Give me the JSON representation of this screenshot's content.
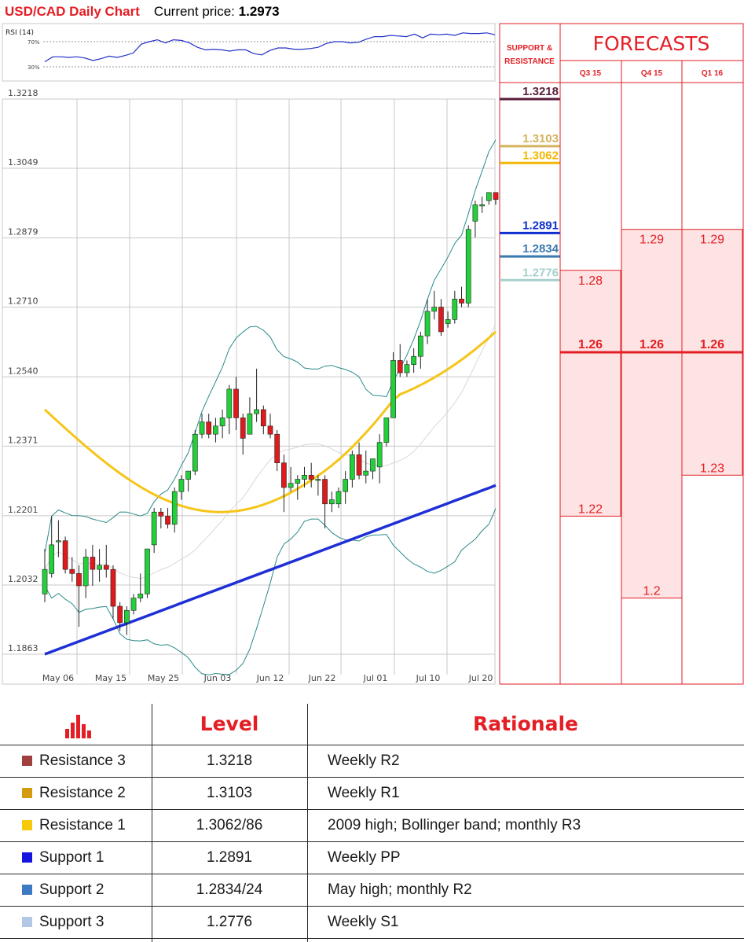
{
  "header": {
    "title": "USD/CAD Daily Chart",
    "price_label": "Current price:",
    "price_value": "1.2973"
  },
  "chart_data": [
    {
      "type": "candlestick",
      "series_name": "USD/CAD",
      "y_ticks": [
        "1.3218",
        "1.3049",
        "1.2879",
        "1.2710",
        "1.2540",
        "1.2371",
        "1.2201",
        "1.2032",
        "1.1863"
      ],
      "x_ticks": [
        "May 06",
        "May 15",
        "May 25",
        "Jun 03",
        "Jun 12",
        "Jun 22",
        "Jul 01",
        "Jul 10",
        "Jul 20"
      ],
      "ylim": [
        1.1863,
        1.3218
      ],
      "grid": true,
      "candles": [
        {
          "o": 1.201,
          "h": 1.212,
          "l": 1.199,
          "c": 1.207
        },
        {
          "o": 1.206,
          "h": 1.22,
          "l": 1.205,
          "c": 1.213
        },
        {
          "o": 1.214,
          "h": 1.219,
          "l": 1.21,
          "c": 1.214
        },
        {
          "o": 1.214,
          "h": 1.215,
          "l": 1.206,
          "c": 1.207
        },
        {
          "o": 1.207,
          "h": 1.21,
          "l": 1.204,
          "c": 1.206
        },
        {
          "o": 1.206,
          "h": 1.208,
          "l": 1.193,
          "c": 1.203
        },
        {
          "o": 1.203,
          "h": 1.212,
          "l": 1.2,
          "c": 1.21
        },
        {
          "o": 1.21,
          "h": 1.213,
          "l": 1.203,
          "c": 1.207
        },
        {
          "o": 1.207,
          "h": 1.212,
          "l": 1.204,
          "c": 1.208
        },
        {
          "o": 1.208,
          "h": 1.213,
          "l": 1.205,
          "c": 1.207
        },
        {
          "o": 1.207,
          "h": 1.208,
          "l": 1.195,
          "c": 1.198
        },
        {
          "o": 1.198,
          "h": 1.199,
          "l": 1.192,
          "c": 1.194
        },
        {
          "o": 1.194,
          "h": 1.198,
          "l": 1.191,
          "c": 1.197
        },
        {
          "o": 1.197,
          "h": 1.201,
          "l": 1.196,
          "c": 1.2
        },
        {
          "o": 1.2,
          "h": 1.206,
          "l": 1.199,
          "c": 1.201
        },
        {
          "o": 1.201,
          "h": 1.212,
          "l": 1.2,
          "c": 1.212
        },
        {
          "o": 1.213,
          "h": 1.222,
          "l": 1.211,
          "c": 1.221
        },
        {
          "o": 1.221,
          "h": 1.222,
          "l": 1.217,
          "c": 1.22
        },
        {
          "o": 1.22,
          "h": 1.222,
          "l": 1.217,
          "c": 1.218
        },
        {
          "o": 1.218,
          "h": 1.227,
          "l": 1.216,
          "c": 1.226
        },
        {
          "o": 1.226,
          "h": 1.23,
          "l": 1.224,
          "c": 1.229
        },
        {
          "o": 1.229,
          "h": 1.231,
          "l": 1.226,
          "c": 1.231
        },
        {
          "o": 1.231,
          "h": 1.241,
          "l": 1.23,
          "c": 1.24
        },
        {
          "o": 1.24,
          "h": 1.245,
          "l": 1.239,
          "c": 1.243
        },
        {
          "o": 1.243,
          "h": 1.245,
          "l": 1.239,
          "c": 1.24
        },
        {
          "o": 1.24,
          "h": 1.244,
          "l": 1.238,
          "c": 1.242
        },
        {
          "o": 1.242,
          "h": 1.246,
          "l": 1.239,
          "c": 1.244
        },
        {
          "o": 1.244,
          "h": 1.252,
          "l": 1.24,
          "c": 1.251
        },
        {
          "o": 1.251,
          "h": 1.254,
          "l": 1.241,
          "c": 1.244
        },
        {
          "o": 1.244,
          "h": 1.245,
          "l": 1.235,
          "c": 1.239
        },
        {
          "o": 1.24,
          "h": 1.249,
          "l": 1.24,
          "c": 1.245
        },
        {
          "o": 1.245,
          "h": 1.256,
          "l": 1.243,
          "c": 1.246
        },
        {
          "o": 1.246,
          "h": 1.247,
          "l": 1.24,
          "c": 1.242
        },
        {
          "o": 1.242,
          "h": 1.245,
          "l": 1.239,
          "c": 1.24
        },
        {
          "o": 1.24,
          "h": 1.241,
          "l": 1.231,
          "c": 1.233
        },
        {
          "o": 1.233,
          "h": 1.235,
          "l": 1.221,
          "c": 1.227
        },
        {
          "o": 1.227,
          "h": 1.232,
          "l": 1.226,
          "c": 1.228
        },
        {
          "o": 1.228,
          "h": 1.23,
          "l": 1.224,
          "c": 1.229
        },
        {
          "o": 1.229,
          "h": 1.232,
          "l": 1.227,
          "c": 1.23
        },
        {
          "o": 1.23,
          "h": 1.233,
          "l": 1.227,
          "c": 1.229
        },
        {
          "o": 1.229,
          "h": 1.23,
          "l": 1.225,
          "c": 1.229
        },
        {
          "o": 1.229,
          "h": 1.23,
          "l": 1.217,
          "c": 1.223
        },
        {
          "o": 1.223,
          "h": 1.226,
          "l": 1.221,
          "c": 1.224
        },
        {
          "o": 1.223,
          "h": 1.227,
          "l": 1.222,
          "c": 1.226
        },
        {
          "o": 1.226,
          "h": 1.231,
          "l": 1.223,
          "c": 1.229
        },
        {
          "o": 1.229,
          "h": 1.236,
          "l": 1.227,
          "c": 1.235
        },
        {
          "o": 1.235,
          "h": 1.238,
          "l": 1.229,
          "c": 1.23
        },
        {
          "o": 1.23,
          "h": 1.236,
          "l": 1.228,
          "c": 1.231
        },
        {
          "o": 1.231,
          "h": 1.234,
          "l": 1.229,
          "c": 1.234
        },
        {
          "o": 1.232,
          "h": 1.24,
          "l": 1.228,
          "c": 1.238
        },
        {
          "o": 1.238,
          "h": 1.244,
          "l": 1.237,
          "c": 1.244
        },
        {
          "o": 1.244,
          "h": 1.26,
          "l": 1.244,
          "c": 1.258
        },
        {
          "o": 1.258,
          "h": 1.262,
          "l": 1.254,
          "c": 1.255
        },
        {
          "o": 1.255,
          "h": 1.258,
          "l": 1.254,
          "c": 1.257
        },
        {
          "o": 1.257,
          "h": 1.261,
          "l": 1.255,
          "c": 1.259
        },
        {
          "o": 1.259,
          "h": 1.265,
          "l": 1.256,
          "c": 1.264
        },
        {
          "o": 1.264,
          "h": 1.273,
          "l": 1.262,
          "c": 1.27
        },
        {
          "o": 1.27,
          "h": 1.275,
          "l": 1.268,
          "c": 1.271
        },
        {
          "o": 1.271,
          "h": 1.273,
          "l": 1.264,
          "c": 1.265
        },
        {
          "o": 1.267,
          "h": 1.27,
          "l": 1.266,
          "c": 1.268
        },
        {
          "o": 1.268,
          "h": 1.275,
          "l": 1.267,
          "c": 1.273
        },
        {
          "o": 1.273,
          "h": 1.276,
          "l": 1.271,
          "c": 1.272
        },
        {
          "o": 1.272,
          "h": 1.291,
          "l": 1.271,
          "c": 1.29
        },
        {
          "o": 1.292,
          "h": 1.297,
          "l": 1.288,
          "c": 1.296
        },
        {
          "o": 1.296,
          "h": 1.298,
          "l": 1.294,
          "c": 1.296
        },
        {
          "o": 1.297,
          "h": 1.299,
          "l": 1.296,
          "c": 1.299
        },
        {
          "o": 1.299,
          "h": 1.299,
          "l": 1.296,
          "c": 1.2973
        }
      ],
      "sma_slow_color": "#1f2fd6",
      "sma_mid_color": "#f5c518",
      "bollinger_color": "#2a8a8a",
      "bull_color": "#22d13a",
      "bear_color": "#e0191c"
    },
    {
      "type": "line",
      "title": "RSI (14)",
      "y_ticks": [
        "70%",
        "30%"
      ],
      "ylim": [
        0,
        100
      ],
      "values": [
        28,
        36,
        36,
        35,
        36,
        34,
        30,
        33,
        37,
        35,
        38,
        42,
        56,
        60,
        63,
        58,
        63,
        62,
        58,
        51,
        47,
        48,
        47,
        45,
        47,
        47,
        41,
        39,
        46,
        50,
        50,
        48,
        48,
        49,
        51,
        57,
        60,
        60,
        58,
        59,
        64,
        68,
        68,
        70,
        69,
        68,
        72,
        66,
        72,
        71,
        72,
        70,
        74,
        73,
        73,
        74,
        71
      ],
      "color": "#2231c9"
    }
  ],
  "levels_panel": {
    "heading": "SUPPORT & RESISTANCE",
    "levels": [
      {
        "value": "1.3218",
        "color": "#5a1e3a"
      },
      {
        "value": "1.3103",
        "color": "#d5b35c"
      },
      {
        "value": "1.3062",
        "color": "#f2b705"
      },
      {
        "value": "1.2891",
        "color": "#1030d0"
      },
      {
        "value": "1.2834",
        "color": "#3a7ab0"
      },
      {
        "value": "1.2776",
        "color": "#a8d0cc"
      }
    ]
  },
  "forecasts": {
    "title": "FORECASTS",
    "columns": [
      {
        "label": "Q3 15",
        "high": "1.28",
        "mid": "1.26",
        "low": "1.22"
      },
      {
        "label": "Q4 15",
        "high": "1.29",
        "mid": "1.26",
        "low": "1.2"
      },
      {
        "label": "Q1 16",
        "high": "1.29",
        "mid": "1.26",
        "low": "1.23"
      }
    ],
    "accent_color": "#e31e24",
    "fill_color": "#fde3e3"
  },
  "table": {
    "headers": {
      "level": "Level",
      "rationale": "Rationale"
    },
    "icon": "bar-chart-icon",
    "rows": [
      {
        "name": "Resistance 3",
        "level": "1.3218",
        "rationale": "Weekly R2",
        "color": "#a0403e"
      },
      {
        "name": "Resistance 2",
        "level": "1.3103",
        "rationale": "Weekly R1",
        "color": "#d49a12"
      },
      {
        "name": "Resistance 1",
        "level": "1.3062/86",
        "rationale": "2009 high; Bollinger band; monthly R3",
        "color": "#f7c80c"
      },
      {
        "name": "Support 1",
        "level": "1.2891",
        "rationale": "Weekly PP",
        "color": "#1515e0"
      },
      {
        "name": "Support 2",
        "level": "1.2834/24",
        "rationale": "May high; monthly R2",
        "color": "#3e7ac4"
      },
      {
        "name": "Support 3",
        "level": "1.2776",
        "rationale": "Weekly S1",
        "color": "#b3c8e6"
      }
    ]
  }
}
